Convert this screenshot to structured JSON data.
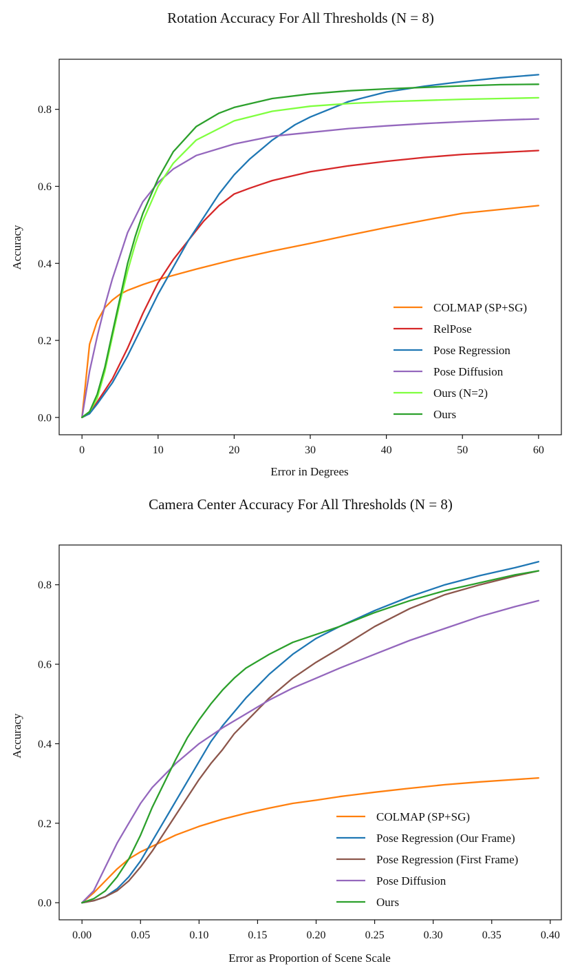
{
  "chart_data": [
    {
      "type": "line",
      "title": "Rotation Accuracy For All Thresholds (N = 8)",
      "xlabel": "Error in Degrees",
      "ylabel": "Accuracy",
      "xlim": [
        -3,
        63
      ],
      "ylim": [
        -0.045,
        0.93
      ],
      "xticks": [
        0,
        10,
        20,
        30,
        40,
        50,
        60
      ],
      "xtick_labels": [
        "0",
        "10",
        "20",
        "30",
        "40",
        "50",
        "60"
      ],
      "yticks": [
        0.0,
        0.2,
        0.4,
        0.6,
        0.8
      ],
      "ytick_labels": [
        "0.0",
        "0.2",
        "0.4",
        "0.6",
        "0.8"
      ],
      "grid": false,
      "legend_position": "lower-right",
      "series": [
        {
          "name": "COLMAP (SP+SG)",
          "color": "#ff7f0e",
          "x": [
            0,
            1,
            2,
            3,
            4,
            5,
            6,
            8,
            10,
            15,
            20,
            25,
            30,
            35,
            40,
            45,
            50,
            55,
            60
          ],
          "y": [
            0,
            0.19,
            0.25,
            0.285,
            0.305,
            0.32,
            0.33,
            0.345,
            0.358,
            0.385,
            0.41,
            0.432,
            0.452,
            0.473,
            0.493,
            0.512,
            0.53,
            0.54,
            0.55
          ]
        },
        {
          "name": "RelPose",
          "color": "#d62728",
          "x": [
            0,
            1,
            2,
            4,
            6,
            8,
            10,
            12,
            14,
            16,
            18,
            20,
            22,
            25,
            30,
            35,
            40,
            45,
            50,
            55,
            60
          ],
          "y": [
            0,
            0.01,
            0.04,
            0.1,
            0.18,
            0.27,
            0.35,
            0.41,
            0.46,
            0.51,
            0.55,
            0.58,
            0.595,
            0.615,
            0.638,
            0.653,
            0.665,
            0.675,
            0.683,
            0.688,
            0.693
          ]
        },
        {
          "name": "Pose Regression",
          "color": "#1f77b4",
          "x": [
            0,
            1,
            2,
            4,
            6,
            8,
            10,
            12,
            14,
            16,
            18,
            20,
            22,
            25,
            28,
            30,
            35,
            40,
            45,
            50,
            55,
            60
          ],
          "y": [
            0,
            0.01,
            0.035,
            0.09,
            0.16,
            0.24,
            0.32,
            0.39,
            0.46,
            0.52,
            0.58,
            0.63,
            0.67,
            0.72,
            0.76,
            0.78,
            0.82,
            0.845,
            0.86,
            0.872,
            0.882,
            0.89
          ]
        },
        {
          "name": "Pose Diffusion",
          "color": "#9467bd",
          "x": [
            0,
            1,
            2,
            3,
            4,
            5,
            6,
            8,
            10,
            12,
            15,
            20,
            25,
            30,
            35,
            40,
            45,
            50,
            55,
            60
          ],
          "y": [
            0,
            0.12,
            0.21,
            0.29,
            0.36,
            0.42,
            0.48,
            0.56,
            0.61,
            0.645,
            0.68,
            0.71,
            0.73,
            0.74,
            0.75,
            0.757,
            0.763,
            0.768,
            0.772,
            0.775
          ]
        },
        {
          "name": "Ours (N=2)",
          "color": "#7fff3f",
          "x": [
            0,
            1,
            2,
            3,
            4,
            5,
            6,
            7,
            8,
            10,
            12,
            15,
            20,
            25,
            30,
            35,
            40,
            45,
            50,
            55,
            60
          ],
          "y": [
            0,
            0.015,
            0.05,
            0.12,
            0.21,
            0.3,
            0.38,
            0.45,
            0.51,
            0.6,
            0.66,
            0.72,
            0.77,
            0.795,
            0.808,
            0.815,
            0.82,
            0.823,
            0.826,
            0.828,
            0.83
          ]
        },
        {
          "name": "Ours",
          "color": "#2ca02c",
          "x": [
            0,
            1,
            2,
            3,
            4,
            5,
            6,
            7,
            8,
            10,
            12,
            15,
            18,
            20,
            25,
            30,
            35,
            40,
            45,
            50,
            55,
            60
          ],
          "y": [
            0,
            0.015,
            0.06,
            0.13,
            0.22,
            0.31,
            0.4,
            0.47,
            0.53,
            0.62,
            0.69,
            0.755,
            0.79,
            0.805,
            0.828,
            0.84,
            0.848,
            0.853,
            0.857,
            0.861,
            0.864,
            0.865
          ]
        }
      ]
    },
    {
      "type": "line",
      "title": "Camera Center Accuracy For All Thresholds (N = 8)",
      "xlabel": "Error as Proportion of Scene Scale",
      "ylabel": "Accuracy",
      "xlim": [
        -0.0195,
        0.4095
      ],
      "ylim": [
        -0.043,
        0.9
      ],
      "xticks": [
        0.0,
        0.05,
        0.1,
        0.15,
        0.2,
        0.25,
        0.3,
        0.35,
        0.4
      ],
      "xtick_labels": [
        "0.00",
        "0.05",
        "0.10",
        "0.15",
        "0.20",
        "0.25",
        "0.30",
        "0.35",
        "0.40"
      ],
      "yticks": [
        0.0,
        0.2,
        0.4,
        0.6,
        0.8
      ],
      "ytick_labels": [
        "0.0",
        "0.2",
        "0.4",
        "0.6",
        "0.8"
      ],
      "grid": false,
      "legend_position": "lower-right",
      "series": [
        {
          "name": "COLMAP (SP+SG)",
          "color": "#ff7f0e",
          "x": [
            0,
            0.01,
            0.02,
            0.03,
            0.04,
            0.05,
            0.06,
            0.08,
            0.1,
            0.12,
            0.14,
            0.16,
            0.18,
            0.2,
            0.22,
            0.25,
            0.28,
            0.31,
            0.34,
            0.37,
            0.39
          ],
          "y": [
            0,
            0.025,
            0.055,
            0.085,
            0.11,
            0.128,
            0.142,
            0.17,
            0.192,
            0.21,
            0.225,
            0.238,
            0.25,
            0.258,
            0.267,
            0.278,
            0.288,
            0.297,
            0.304,
            0.31,
            0.314
          ]
        },
        {
          "name": "Pose Regression (Our Frame)",
          "color": "#1f77b4",
          "x": [
            0,
            0.01,
            0.02,
            0.03,
            0.04,
            0.05,
            0.06,
            0.07,
            0.08,
            0.09,
            0.1,
            0.11,
            0.12,
            0.14,
            0.16,
            0.18,
            0.2,
            0.22,
            0.25,
            0.28,
            0.31,
            0.34,
            0.37,
            0.39
          ],
          "y": [
            0,
            0.005,
            0.015,
            0.035,
            0.065,
            0.105,
            0.155,
            0.205,
            0.255,
            0.305,
            0.355,
            0.405,
            0.445,
            0.515,
            0.575,
            0.625,
            0.665,
            0.695,
            0.735,
            0.77,
            0.8,
            0.823,
            0.843,
            0.858
          ]
        },
        {
          "name": "Pose Regression (First Frame)",
          "color": "#8c564b",
          "x": [
            0,
            0.01,
            0.02,
            0.03,
            0.04,
            0.05,
            0.06,
            0.07,
            0.08,
            0.09,
            0.1,
            0.11,
            0.12,
            0.13,
            0.14,
            0.16,
            0.18,
            0.2,
            0.22,
            0.25,
            0.28,
            0.31,
            0.34,
            0.37,
            0.39
          ],
          "y": [
            0,
            0.005,
            0.015,
            0.03,
            0.055,
            0.09,
            0.13,
            0.175,
            0.22,
            0.265,
            0.31,
            0.35,
            0.385,
            0.425,
            0.455,
            0.515,
            0.565,
            0.605,
            0.64,
            0.695,
            0.74,
            0.775,
            0.8,
            0.822,
            0.835
          ]
        },
        {
          "name": "Pose Diffusion",
          "color": "#9467bd",
          "x": [
            0,
            0.01,
            0.02,
            0.03,
            0.04,
            0.05,
            0.06,
            0.07,
            0.08,
            0.09,
            0.1,
            0.11,
            0.12,
            0.14,
            0.16,
            0.18,
            0.2,
            0.22,
            0.25,
            0.28,
            0.31,
            0.34,
            0.37,
            0.39
          ],
          "y": [
            0,
            0.03,
            0.09,
            0.15,
            0.2,
            0.25,
            0.29,
            0.32,
            0.35,
            0.375,
            0.4,
            0.42,
            0.44,
            0.475,
            0.51,
            0.54,
            0.565,
            0.59,
            0.625,
            0.66,
            0.69,
            0.72,
            0.745,
            0.76
          ]
        },
        {
          "name": "Ours",
          "color": "#2ca02c",
          "x": [
            0,
            0.01,
            0.02,
            0.03,
            0.04,
            0.05,
            0.06,
            0.07,
            0.08,
            0.09,
            0.1,
            0.11,
            0.12,
            0.13,
            0.14,
            0.16,
            0.18,
            0.2,
            0.22,
            0.25,
            0.28,
            0.31,
            0.34,
            0.37,
            0.39
          ],
          "y": [
            0,
            0.01,
            0.03,
            0.065,
            0.11,
            0.17,
            0.24,
            0.3,
            0.36,
            0.415,
            0.46,
            0.5,
            0.535,
            0.565,
            0.59,
            0.625,
            0.655,
            0.675,
            0.695,
            0.73,
            0.76,
            0.785,
            0.805,
            0.825,
            0.835
          ]
        }
      ]
    }
  ]
}
